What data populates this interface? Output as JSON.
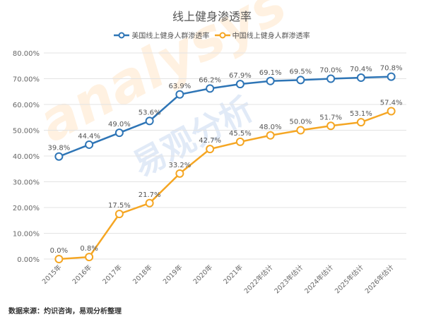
{
  "chart_data": {
    "type": "line",
    "title": "线上健身渗透率",
    "categories": [
      "2015年",
      "2016年",
      "2017年",
      "2018年",
      "2019年",
      "2020年",
      "2021年",
      "2022年估计",
      "2023年估计",
      "2024年估计",
      "2025年估计",
      "2026年估计"
    ],
    "series": [
      {
        "name": "美国线上健身人群渗透率",
        "color": "#2e75b6",
        "values": [
          39.8,
          44.4,
          49.0,
          53.6,
          63.9,
          66.2,
          67.9,
          69.1,
          69.5,
          70.0,
          70.4,
          70.8
        ],
        "labels": [
          "39.8%",
          "44.4%",
          "49.0%",
          "53.6%",
          "63.9%",
          "66.2%",
          "67.9%",
          "69.1%",
          "69.5%",
          "70.0%",
          "70.4%",
          "70.8%"
        ]
      },
      {
        "name": "中国线上健身人群渗透率",
        "color": "#f5a623",
        "values": [
          0.0,
          0.8,
          17.5,
          21.7,
          33.2,
          42.7,
          45.5,
          48.0,
          50.0,
          51.7,
          53.1,
          57.4
        ],
        "labels": [
          "0.0%",
          "0.8%",
          "17.5%",
          "21.7%",
          "33.2%",
          "42.7%",
          "45.5%",
          "48.0%",
          "50.0%",
          "51.7%",
          "53.1%",
          "57.4%"
        ]
      }
    ],
    "ylim": [
      0,
      80
    ],
    "yticks": [
      "0.00%",
      "10.00%",
      "20.00%",
      "30.00%",
      "40.00%",
      "50.00%",
      "60.00%",
      "70.00%",
      "80.00%"
    ],
    "grid": true,
    "legend": "top-center"
  },
  "source": "数据来源：灼识咨询，易观分析整理",
  "watermark": {
    "latin": "analysys",
    "cjk": "易观分析"
  }
}
